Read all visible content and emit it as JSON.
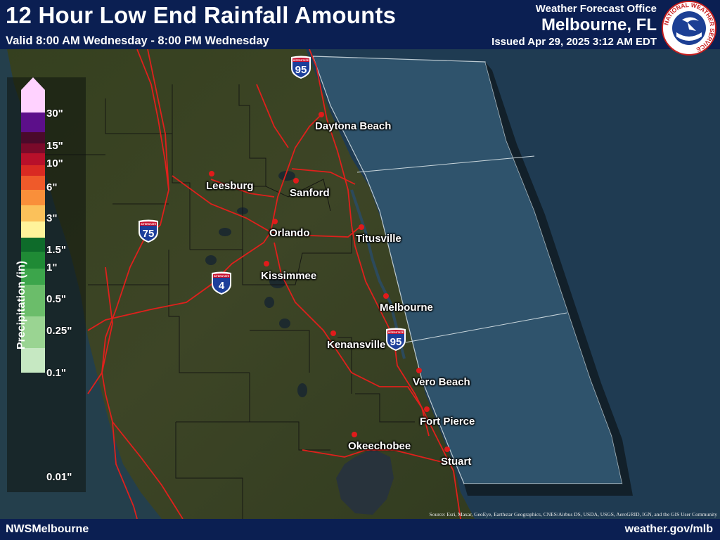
{
  "header": {
    "title": "12 Hour Low End Rainfall Amounts",
    "valid": "Valid 8:00 AM Wednesday - 8:00 PM Wednesday",
    "office_label": "Weather Forecast Office",
    "office_name": "Melbourne, FL",
    "issued": "Issued Apr 29, 2025 3:12 AM EDT",
    "logo_text": "NATIONAL WEATHER SERVICE"
  },
  "legend": {
    "title": "Precipitation (in)",
    "ticks": [
      "30\"",
      "15\"",
      "10\"",
      "6\"",
      "3\"",
      "1.5\"",
      "1\"",
      "0.5\"",
      "0.25\"",
      "0.1\"",
      "0.01\""
    ],
    "colors": [
      "#ffd2ff",
      "#5c0f8a",
      "#4a0a2a",
      "#7a0a2a",
      "#b8102a",
      "#d92a22",
      "#ef5a2a",
      "#f98f3a",
      "#fbc15a",
      "#fff39a",
      "#0e6b2a",
      "#1f8a35",
      "#3ca54b",
      "#6bbd6a",
      "#9ad492",
      "#c6e8c2"
    ]
  },
  "cities": [
    {
      "name": "Daytona Beach"
    },
    {
      "name": "Leesburg"
    },
    {
      "name": "Sanford"
    },
    {
      "name": "Orlando"
    },
    {
      "name": "Titusville"
    },
    {
      "name": "Kissimmee"
    },
    {
      "name": "Melbourne"
    },
    {
      "name": "Kenansville"
    },
    {
      "name": "Vero Beach"
    },
    {
      "name": "Fort Pierce"
    },
    {
      "name": "Okeechobee"
    },
    {
      "name": "Stuart"
    }
  ],
  "shields": [
    {
      "number": "95",
      "icon": "interstate-95-shield-icon"
    },
    {
      "number": "75",
      "icon": "interstate-75-shield-icon"
    },
    {
      "number": "4",
      "icon": "interstate-4-shield-icon"
    },
    {
      "number": "95",
      "icon": "interstate-95-shield-icon"
    }
  ],
  "shield_header": "INTERSTATE",
  "attribution": "Source: Esri, Maxar, GeoEye, Earthstar Geographics, CNES/Airbus DS, USDA, USGS, AeroGRID, IGN, and the GIS User Community",
  "footer": {
    "left": "NWSMelbourne",
    "right": "weather.gov/mlb"
  },
  "colors": {
    "banner": "#0b1f52",
    "ocean": "#223f55",
    "forecast_zone": "#31566f",
    "land": "#3a4128",
    "roads": "#e0201c",
    "city_dot": "#e01b1b"
  }
}
